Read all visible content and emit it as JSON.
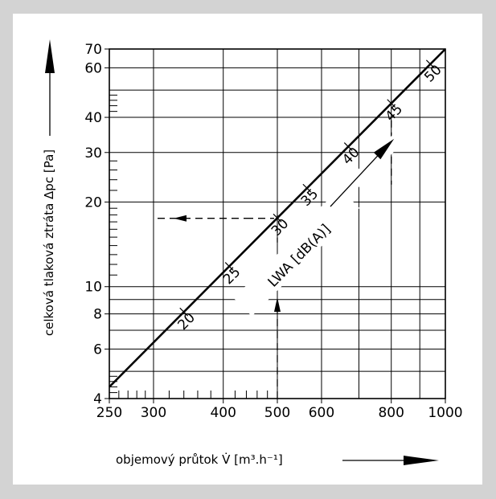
{
  "chart_data": {
    "type": "line",
    "title": "",
    "xlabel": "objemový průtok V̇ [m³.h⁻¹]",
    "ylabel": "celková tlaková ztráta Δpc [Pa]",
    "x_scale": "log",
    "y_scale": "log",
    "xlim": [
      250,
      1000
    ],
    "ylim": [
      4,
      70
    ],
    "x_tick_labels": [
      {
        "value": 250,
        "text": "250"
      },
      {
        "value": 300,
        "text": "300"
      },
      {
        "value": 400,
        "text": "400"
      },
      {
        "value": 500,
        "text": "500"
      },
      {
        "value": 600,
        "text": "600"
      },
      {
        "value": 800,
        "text": "800"
      },
      {
        "value": 1000,
        "text": "1000"
      }
    ],
    "x_major_grid": [
      250,
      300,
      400,
      500,
      600,
      700,
      800,
      900,
      1000
    ],
    "x_minor_ticks": [
      260,
      270,
      280,
      290,
      320,
      340,
      360,
      380,
      420,
      440,
      460,
      480
    ],
    "y_tick_labels": [
      {
        "value": 4,
        "text": "4"
      },
      {
        "value": 6,
        "text": "6"
      },
      {
        "value": 8,
        "text": "8"
      },
      {
        "value": 10,
        "text": "10"
      },
      {
        "value": 20,
        "text": "20"
      },
      {
        "value": 30,
        "text": "30"
      },
      {
        "value": 40,
        "text": "40"
      },
      {
        "value": 60,
        "text": "60"
      },
      {
        "value": 70,
        "text": "70"
      }
    ],
    "y_major_grid": [
      4,
      5,
      6,
      7,
      8,
      9,
      10,
      20,
      30,
      40,
      50,
      60,
      70
    ],
    "y_minor_ticks": [
      4.2,
      4.4,
      4.6,
      4.8,
      11,
      12,
      13,
      14,
      15,
      16,
      17,
      18,
      19,
      22,
      24,
      26,
      28,
      42,
      44,
      46,
      48
    ],
    "grid": true,
    "series": [
      {
        "x": [
          250,
          1000
        ],
        "y": [
          4.4,
          70
        ],
        "color": "#000000"
      }
    ],
    "sound_levels_label": "LWA [dB(A)]",
    "sound_levels": [
      {
        "value": 20,
        "text": "20",
        "x": 340
      },
      {
        "value": 25,
        "text": "25",
        "x": 410
      },
      {
        "value": 30,
        "text": "30",
        "x": 500
      },
      {
        "value": 35,
        "text": "35",
        "x": 565
      },
      {
        "value": 40,
        "text": "40",
        "x": 670
      },
      {
        "value": 45,
        "text": "45",
        "x": 800
      },
      {
        "value": 50,
        "text": "50",
        "x": 940
      }
    ],
    "example_reading": {
      "x": 500,
      "y": 17.5
    }
  }
}
